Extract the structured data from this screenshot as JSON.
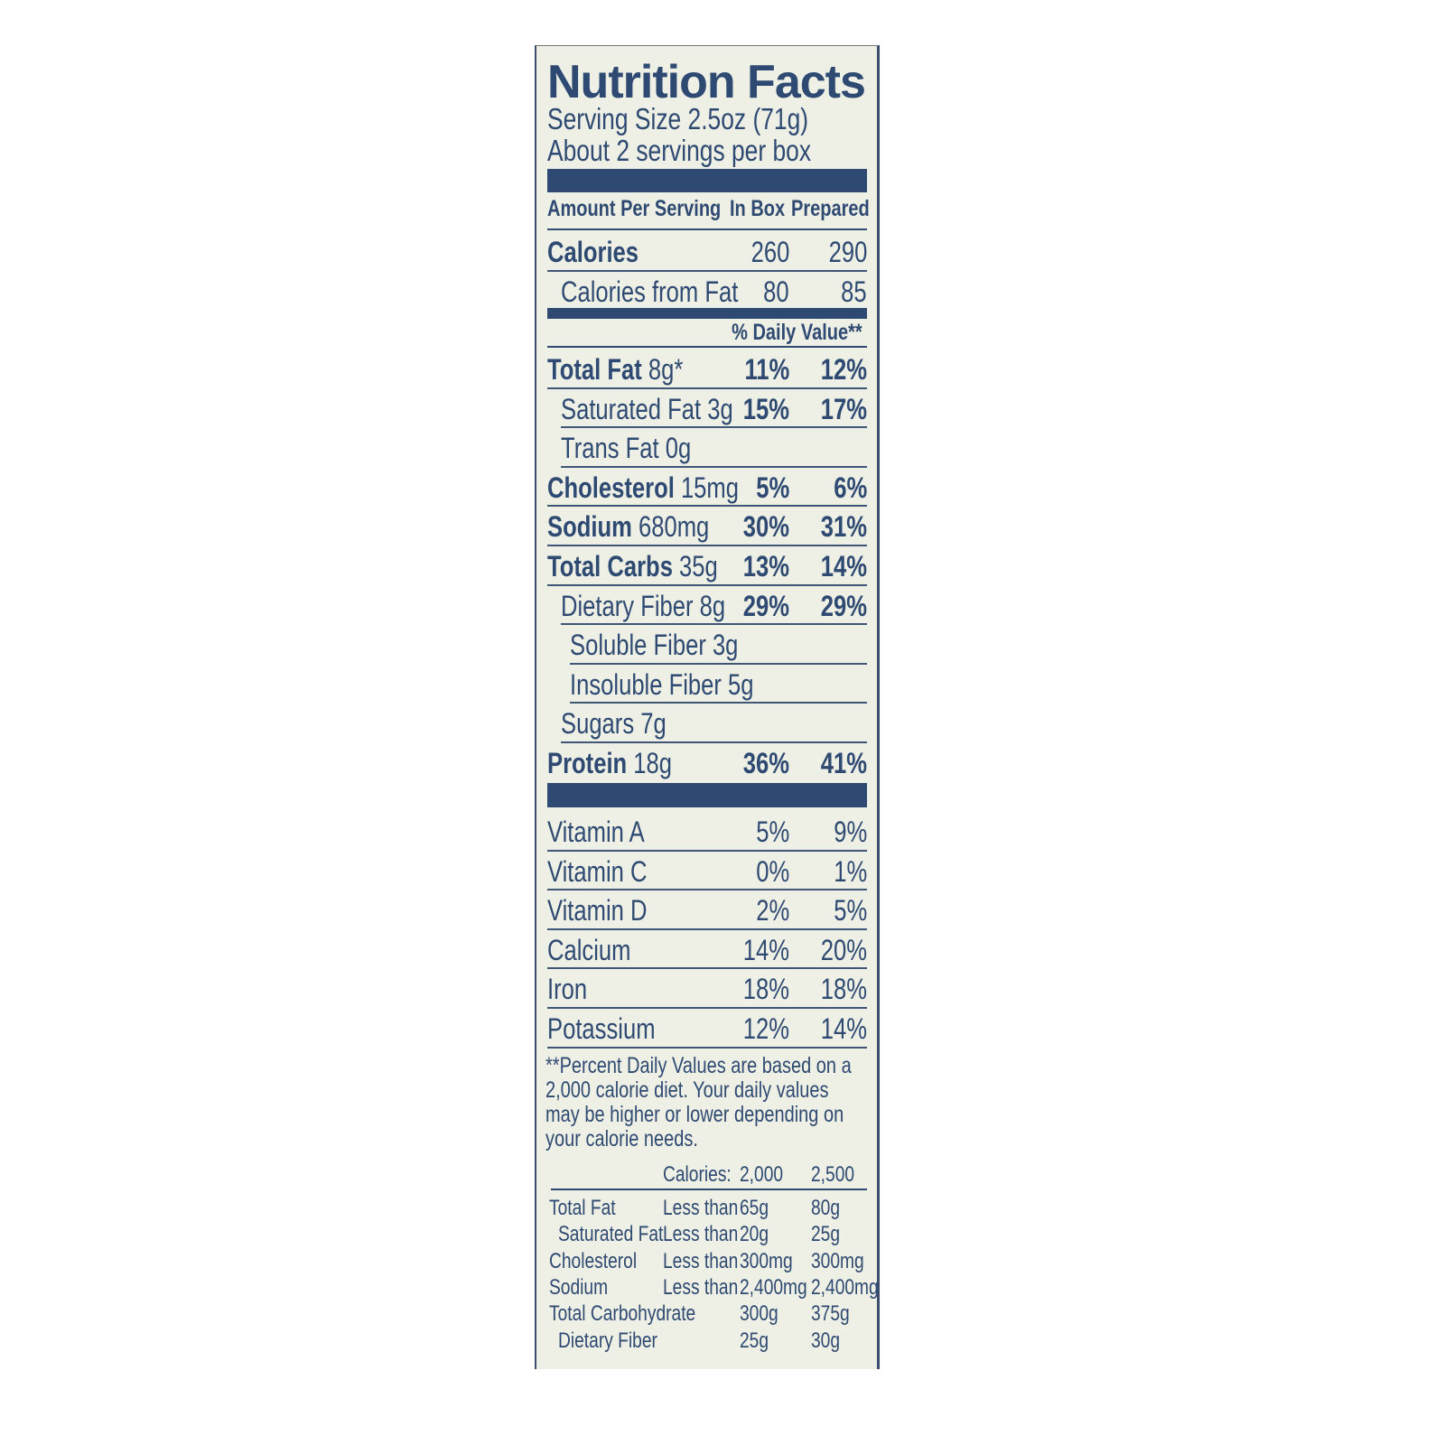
{
  "title": "Nutrition Facts",
  "serving_size": "Serving Size 2.5oz (71g)",
  "servings": "About 2 servings per box",
  "header": {
    "amount": "Amount Per Serving",
    "col1": "In Box",
    "col2": "Prepared"
  },
  "calories": {
    "label": "Calories",
    "v1": "260",
    "v2": "290"
  },
  "calories_fat": {
    "label": "Calories from Fat",
    "v1": "80",
    "v2": "85"
  },
  "daily_value_header": "% Daily Value**",
  "nutrients": [
    {
      "name": "Total Fat",
      "amount": "8g*",
      "v1": "11%",
      "v2": "12%",
      "bold": true,
      "indent": 0
    },
    {
      "name": "Saturated Fat",
      "amount": "3g",
      "v1": "15%",
      "v2": "17%",
      "bold": false,
      "indent": 1
    },
    {
      "name": "Trans Fat",
      "amount": "0g",
      "v1": "",
      "v2": "",
      "bold": false,
      "indent": 1
    },
    {
      "name": "Cholesterol",
      "amount": "15mg",
      "v1": "5%",
      "v2": "6%",
      "bold": true,
      "indent": 0
    },
    {
      "name": "Sodium",
      "amount": "680mg",
      "v1": "30%",
      "v2": "31%",
      "bold": true,
      "indent": 0
    },
    {
      "name": "Total Carbs",
      "amount": "35g",
      "v1": "13%",
      "v2": "14%",
      "bold": true,
      "indent": 0
    },
    {
      "name": "Dietary Fiber",
      "amount": "8g",
      "v1": "29%",
      "v2": "29%",
      "bold": false,
      "indent": 1
    },
    {
      "name": "Soluble Fiber",
      "amount": "3g",
      "v1": "",
      "v2": "",
      "bold": false,
      "indent": 2
    },
    {
      "name": "Insoluble Fiber",
      "amount": "5g",
      "v1": "",
      "v2": "",
      "bold": false,
      "indent": 2
    },
    {
      "name": "Sugars",
      "amount": "7g",
      "v1": "",
      "v2": "",
      "bold": false,
      "indent": 1
    },
    {
      "name": "Protein",
      "amount": "18g",
      "v1": "36%",
      "v2": "41%",
      "bold": true,
      "indent": 0
    }
  ],
  "vitamins": [
    {
      "name": "Vitamin A",
      "v1": "5%",
      "v2": "9%"
    },
    {
      "name": "Vitamin C",
      "v1": "0%",
      "v2": "1%"
    },
    {
      "name": "Vitamin D",
      "v1": "2%",
      "v2": "5%"
    },
    {
      "name": "Calcium",
      "v1": "14%",
      "v2": "20%"
    },
    {
      "name": "Iron",
      "v1": "18%",
      "v2": "18%"
    },
    {
      "name": "Potassium",
      "v1": "12%",
      "v2": "14%"
    }
  ],
  "footnote": "**Percent Daily Values are based on a 2,000 calorie diet. Your daily values may be higher or lower depending on your calorie needs.",
  "dv_table": {
    "header": [
      "Calories:",
      "2,000",
      "2,500"
    ],
    "rows": [
      [
        "Total Fat",
        "Less than",
        "65g",
        "80g"
      ],
      [
        " Saturated Fat",
        "Less than",
        "20g",
        "25g"
      ],
      [
        "Cholesterol",
        "Less than",
        "300mg",
        "300mg"
      ],
      [
        "Sodium",
        "Less than",
        "2,400mg",
        "2,400mg"
      ],
      [
        "Total Carbohydrate",
        "",
        "300g",
        "375g"
      ],
      [
        " Dietary Fiber",
        "",
        "25g",
        "30g"
      ]
    ]
  },
  "colors": {
    "ink": "#2f4a72",
    "background": "#eef0e5"
  }
}
